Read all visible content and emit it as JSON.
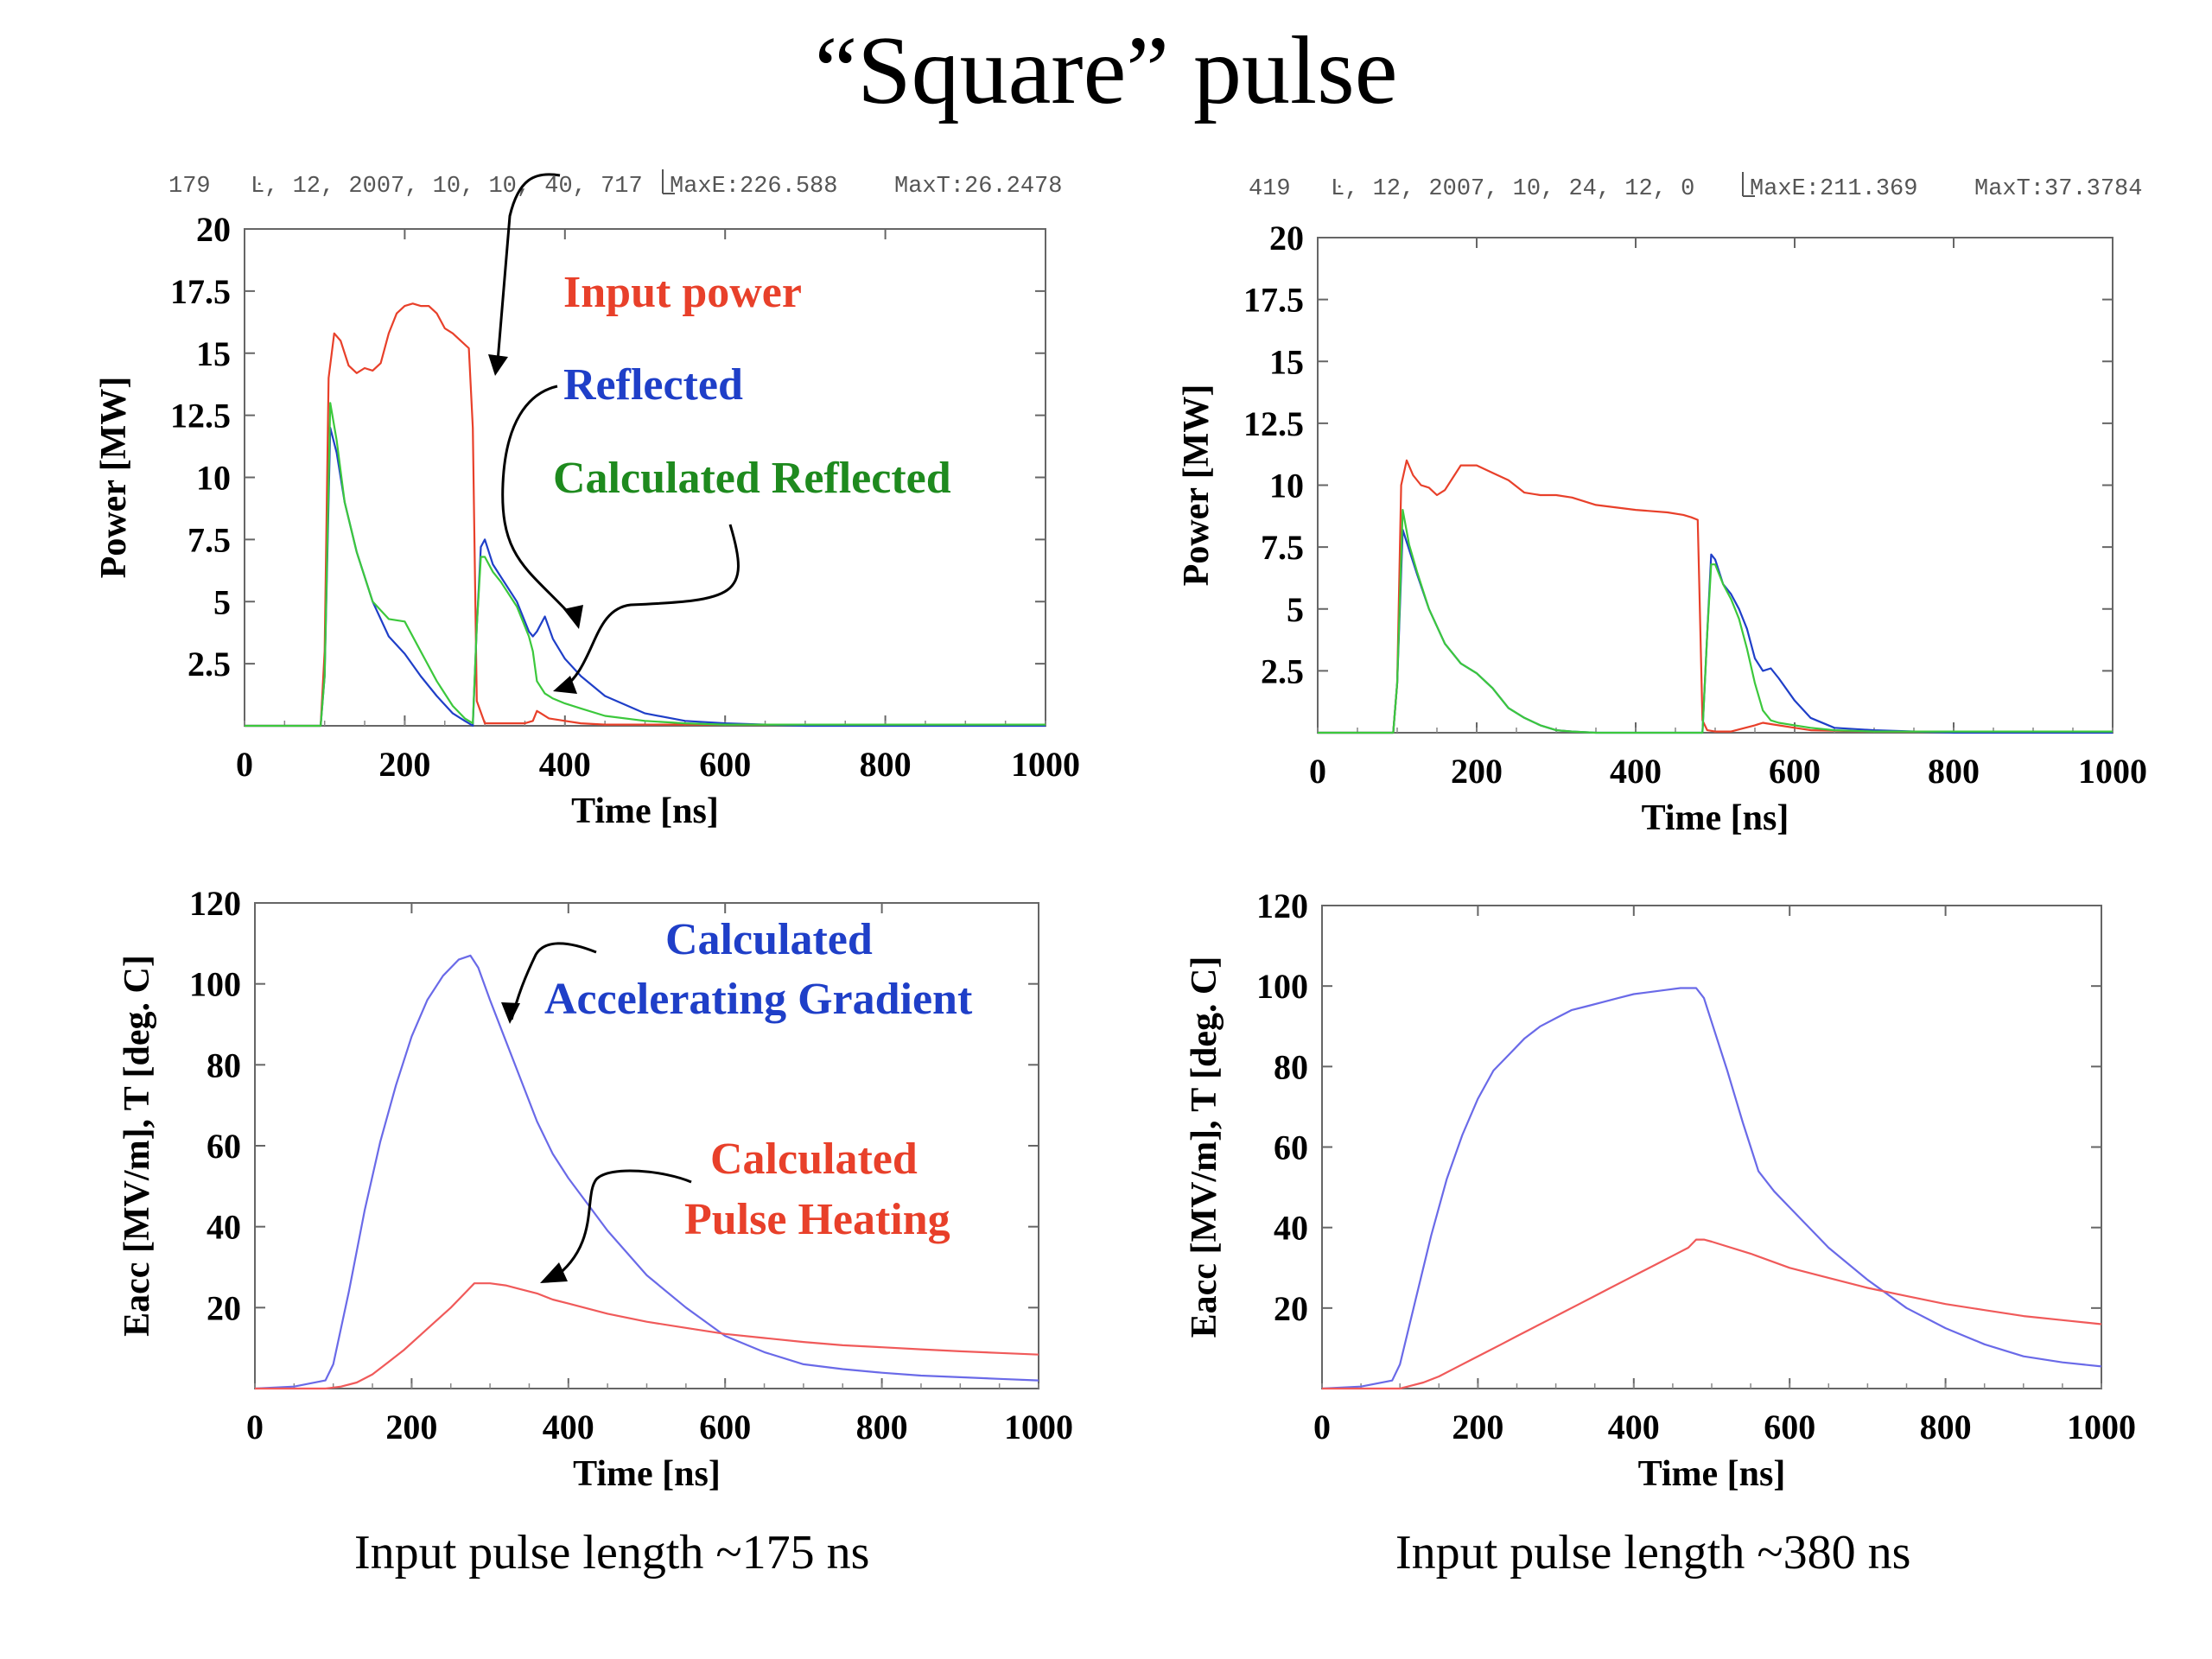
{
  "title": "“Square” pulse",
  "chart_data": [
    {
      "id": "p1",
      "type": "line",
      "header": [
        "179",
        "Ŀ, 12, 2007, 10, 10, 40, 717",
        "MaxE:226.588",
        "MaxT:26.2478"
      ],
      "xlabel": "Time [ns]",
      "ylabel": "Power [MW]",
      "xlim": [
        0,
        1000
      ],
      "ylim": [
        0,
        20
      ],
      "xticks": [
        0,
        200,
        400,
        600,
        800,
        1000
      ],
      "yticks": [
        2.5,
        5,
        7.5,
        10,
        12.5,
        15,
        17.5,
        20
      ],
      "ytick_labels": [
        "2.5",
        "5",
        "7.5",
        "10",
        "12.5",
        "15",
        "17.5",
        "20"
      ],
      "annotations": [
        {
          "text": "Input power",
          "color": "#e8402a"
        },
        {
          "text": "Reflected",
          "color": "#1f3fc8"
        },
        {
          "text": "Calculated Reflected",
          "color": "#1e8a1e"
        }
      ],
      "series": [
        {
          "color": "#e8402a",
          "x": [
            0,
            95,
            100,
            105,
            112,
            120,
            130,
            140,
            150,
            160,
            170,
            180,
            190,
            200,
            210,
            220,
            230,
            240,
            250,
            260,
            270,
            280,
            285,
            290,
            300,
            350,
            360,
            365,
            370,
            380,
            400,
            420,
            450,
            500,
            550,
            600,
            700,
            800,
            1000
          ],
          "y": [
            0,
            0,
            3,
            14,
            15.8,
            15.5,
            14.5,
            14.2,
            14.4,
            14.3,
            14.6,
            15.8,
            16.6,
            16.9,
            17.0,
            16.9,
            16.9,
            16.6,
            16.0,
            15.8,
            15.5,
            15.2,
            12,
            1.0,
            0.1,
            0.1,
            0.2,
            0.6,
            0.5,
            0.3,
            0.2,
            0.1,
            0.05,
            0.05,
            0.05,
            0.05,
            0.05,
            0.05,
            0.05
          ]
        },
        {
          "color": "#1f3fc8",
          "x": [
            0,
            95,
            100,
            107,
            115,
            125,
            140,
            160,
            180,
            200,
            220,
            240,
            260,
            275,
            280,
            285,
            290,
            295,
            300,
            310,
            320,
            340,
            355,
            360,
            365,
            375,
            385,
            400,
            420,
            450,
            500,
            550,
            600,
            700,
            1000
          ],
          "y": [
            0,
            0,
            2,
            12.0,
            11.0,
            9.0,
            7.0,
            5.0,
            3.6,
            2.9,
            2.0,
            1.2,
            0.5,
            0.2,
            0.1,
            0,
            4.0,
            7.2,
            7.5,
            6.5,
            6.0,
            5.0,
            3.8,
            3.6,
            3.8,
            4.4,
            3.5,
            2.7,
            2.0,
            1.2,
            0.5,
            0.2,
            0.1,
            0,
            0
          ]
        },
        {
          "color": "#3cc83c",
          "x": [
            0,
            95,
            100,
            107,
            115,
            125,
            140,
            160,
            180,
            200,
            220,
            240,
            260,
            275,
            280,
            285,
            290,
            295,
            300,
            310,
            320,
            340,
            355,
            360,
            365,
            375,
            385,
            400,
            420,
            450,
            500,
            550,
            600,
            700,
            1000
          ],
          "y": [
            0,
            0,
            2,
            13.0,
            11.5,
            9.0,
            7.0,
            5.0,
            4.3,
            4.2,
            3.0,
            1.8,
            0.8,
            0.3,
            0.2,
            0.1,
            4.0,
            6.8,
            6.8,
            6.2,
            5.8,
            4.8,
            3.6,
            3.0,
            1.8,
            1.3,
            1.1,
            0.9,
            0.7,
            0.4,
            0.2,
            0.1,
            0.05,
            0.05,
            0.05
          ]
        }
      ]
    },
    {
      "id": "p2",
      "type": "line",
      "header": [
        "419",
        "Ŀ, 12, 2007, 10, 24, 12, 0",
        "MaxE:211.369",
        "MaxT:37.3784"
      ],
      "xlabel": "Time [ns]",
      "ylabel": "Power [MW]",
      "xlim": [
        0,
        1000
      ],
      "ylim": [
        0,
        20
      ],
      "xticks": [
        0,
        200,
        400,
        600,
        800,
        1000
      ],
      "yticks": [
        2.5,
        5,
        7.5,
        10,
        12.5,
        15,
        17.5,
        20
      ],
      "ytick_labels": [
        "2.5",
        "5",
        "7.5",
        "10",
        "12.5",
        "15",
        "17.5",
        "20"
      ],
      "annotations": [],
      "series": [
        {
          "color": "#e8402a",
          "x": [
            0,
            95,
            100,
            105,
            112,
            120,
            130,
            140,
            150,
            160,
            170,
            180,
            190,
            200,
            220,
            240,
            260,
            280,
            300,
            320,
            350,
            400,
            440,
            460,
            470,
            478,
            480,
            484,
            490,
            500,
            520,
            550,
            560,
            570,
            600,
            620,
            700,
            1000
          ],
          "y": [
            0,
            0,
            2,
            10,
            11.0,
            10.4,
            10.0,
            9.9,
            9.6,
            9.8,
            10.3,
            10.8,
            10.8,
            10.8,
            10.5,
            10.2,
            9.7,
            9.6,
            9.6,
            9.5,
            9.2,
            9.0,
            8.9,
            8.8,
            8.7,
            8.6,
            6,
            0.5,
            0.1,
            0.05,
            0.05,
            0.3,
            0.4,
            0.35,
            0.2,
            0.1,
            0.05,
            0.05
          ]
        },
        {
          "color": "#1f3fc8",
          "x": [
            0,
            95,
            100,
            107,
            115,
            125,
            140,
            160,
            180,
            200,
            220,
            240,
            260,
            280,
            300,
            320,
            350,
            400,
            440,
            470,
            478,
            484,
            490,
            495,
            500,
            510,
            520,
            530,
            540,
            550,
            560,
            570,
            580,
            600,
            620,
            650,
            700,
            800,
            1000
          ],
          "y": [
            0,
            0,
            2,
            8.2,
            7.4,
            6.4,
            5.0,
            3.6,
            2.8,
            2.4,
            1.8,
            1.0,
            0.6,
            0.3,
            0.1,
            0.05,
            0,
            0,
            0,
            0,
            0,
            0,
            4.0,
            7.2,
            7.0,
            6.0,
            5.6,
            5.0,
            4.2,
            3.0,
            2.5,
            2.6,
            2.2,
            1.3,
            0.6,
            0.2,
            0.1,
            0,
            0
          ]
        },
        {
          "color": "#3cc83c",
          "x": [
            0,
            95,
            100,
            107,
            115,
            125,
            140,
            160,
            180,
            200,
            220,
            240,
            260,
            280,
            300,
            320,
            350,
            400,
            440,
            470,
            478,
            484,
            490,
            495,
            500,
            510,
            520,
            530,
            540,
            550,
            560,
            570,
            580,
            600,
            620,
            650,
            700,
            800,
            1000
          ],
          "y": [
            0,
            0,
            2,
            9.0,
            7.6,
            6.5,
            5.0,
            3.6,
            2.8,
            2.4,
            1.8,
            1.0,
            0.6,
            0.3,
            0.1,
            0.05,
            0,
            0,
            0,
            0,
            0,
            0,
            4.0,
            6.8,
            6.8,
            6.0,
            5.4,
            4.6,
            3.4,
            2.0,
            0.9,
            0.5,
            0.4,
            0.3,
            0.2,
            0.1,
            0.05,
            0.05,
            0.05
          ]
        }
      ]
    },
    {
      "id": "p3",
      "type": "line",
      "xlabel": "Time [ns]",
      "ylabel": "Eacc [MV/m], T [deg. C]",
      "xlim": [
        0,
        1000
      ],
      "ylim": [
        0,
        120
      ],
      "xticks": [
        0,
        200,
        400,
        600,
        800,
        1000
      ],
      "yticks": [
        20,
        40,
        60,
        80,
        100,
        120
      ],
      "ytick_labels": [
        "20",
        "40",
        "60",
        "80",
        "100",
        "120"
      ],
      "annotations": [
        {
          "text": "Calculated",
          "color": "#1f3fc8"
        },
        {
          "text": "Accelerating Gradient",
          "color": "#1f3fc8"
        },
        {
          "text": "Calculated",
          "color": "#e8402a"
        },
        {
          "text": "Pulse Heating",
          "color": "#e8402a"
        }
      ],
      "series": [
        {
          "color": "#6a6ae8",
          "x": [
            0,
            50,
            90,
            100,
            120,
            140,
            160,
            180,
            200,
            220,
            240,
            260,
            275,
            285,
            300,
            320,
            340,
            360,
            380,
            400,
            450,
            500,
            550,
            600,
            650,
            700,
            750,
            800,
            850,
            900,
            950,
            1000
          ],
          "y": [
            0,
            0.5,
            2,
            6,
            24,
            44,
            61,
            75,
            87,
            96,
            102,
            106,
            107,
            104,
            96,
            86,
            76,
            66,
            58,
            52,
            39,
            28,
            20,
            13,
            9,
            6,
            4.8,
            3.9,
            3.2,
            2.8,
            2.4,
            2.0
          ]
        },
        {
          "color": "#f05a5a",
          "x": [
            0,
            90,
            110,
            130,
            150,
            170,
            190,
            210,
            230,
            250,
            270,
            280,
            290,
            300,
            320,
            340,
            360,
            380,
            400,
            450,
            500,
            550,
            600,
            650,
            700,
            750,
            800,
            850,
            900,
            950,
            1000
          ],
          "y": [
            0,
            0,
            0.5,
            1.5,
            3.5,
            6.5,
            9.5,
            13,
            16.5,
            20,
            24,
            26,
            26,
            26,
            25.5,
            24.5,
            23.5,
            22,
            21,
            18.5,
            16.5,
            15,
            13.5,
            12.5,
            11.5,
            10.7,
            10.2,
            9.7,
            9.2,
            8.8,
            8.4
          ]
        }
      ]
    },
    {
      "id": "p4",
      "type": "line",
      "xlabel": "Time [ns]",
      "ylabel": "Eacc [MV/m], T [deg. C]",
      "xlim": [
        0,
        1000
      ],
      "ylim": [
        0,
        120
      ],
      "xticks": [
        0,
        200,
        400,
        600,
        800,
        1000
      ],
      "yticks": [
        20,
        40,
        60,
        80,
        100,
        120
      ],
      "ytick_labels": [
        "20",
        "40",
        "60",
        "80",
        "100",
        "120"
      ],
      "annotations": [],
      "series": [
        {
          "color": "#6a6ae8",
          "x": [
            0,
            50,
            90,
            100,
            120,
            140,
            160,
            180,
            200,
            220,
            240,
            260,
            280,
            300,
            320,
            340,
            360,
            380,
            400,
            420,
            440,
            460,
            480,
            490,
            500,
            520,
            540,
            560,
            580,
            600,
            650,
            700,
            750,
            800,
            850,
            900,
            950,
            1000
          ],
          "y": [
            0,
            0.5,
            2,
            6,
            22,
            38,
            52,
            63,
            72,
            79,
            83,
            87,
            90,
            92,
            94,
            95,
            96,
            97,
            98,
            98.5,
            99,
            99.5,
            99.5,
            97,
            91,
            79,
            66,
            54,
            49,
            45,
            35,
            27,
            20,
            15,
            11,
            8,
            6.5,
            5.5
          ]
        },
        {
          "color": "#f05a5a",
          "x": [
            0,
            100,
            110,
            130,
            150,
            170,
            190,
            210,
            230,
            250,
            270,
            290,
            310,
            330,
            350,
            370,
            390,
            410,
            430,
            450,
            470,
            480,
            490,
            500,
            550,
            600,
            650,
            700,
            750,
            800,
            850,
            900,
            950,
            1000
          ],
          "y": [
            0,
            0,
            0.5,
            1.5,
            3,
            5,
            7,
            9,
            11,
            13,
            15,
            17,
            19,
            21,
            23,
            25,
            27,
            29,
            31,
            33,
            35,
            37,
            37,
            36.5,
            33.5,
            30,
            27.5,
            25,
            23,
            21,
            19.5,
            18,
            17,
            16
          ]
        }
      ]
    }
  ],
  "captions": [
    "Input pulse length ~175 ns",
    "Input pulse length ~380 ns"
  ]
}
